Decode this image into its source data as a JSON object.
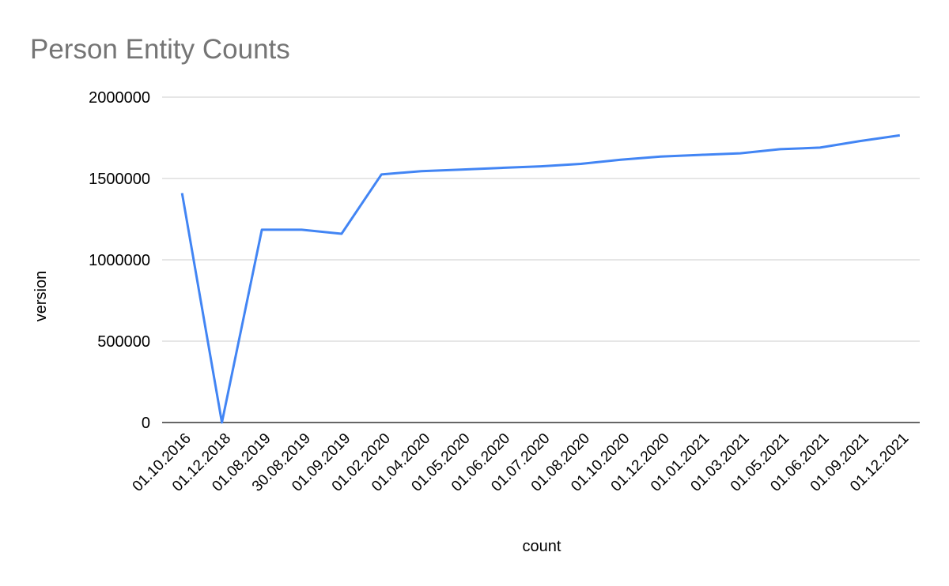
{
  "chart_data": {
    "type": "line",
    "title": "Person Entity Counts",
    "x_label": "count",
    "y_label": "version",
    "categories": [
      "01.10.2016",
      "01.12.2018",
      "01.08.2019",
      "30.08.2019",
      "01.09.2019",
      "01.02.2020",
      "01.04.2020",
      "01.05.2020",
      "01.06.2020",
      "01.07.2020",
      "01.08.2020",
      "01.10.2020",
      "01.12.2020",
      "01.01.2021",
      "01.03.2021",
      "01.05.2021",
      "01.06.2021",
      "01.09.2021",
      "01.12.2021"
    ],
    "values": [
      1410000,
      0,
      1185000,
      1185000,
      1160000,
      1525000,
      1545000,
      1555000,
      1565000,
      1575000,
      1590000,
      1615000,
      1635000,
      1645000,
      1655000,
      1680000,
      1690000,
      1730000,
      1765000
    ],
    "color": "#4285f4",
    "ylim": [
      0,
      2000000
    ],
    "yticks": [
      0,
      500000,
      1000000,
      1500000,
      2000000
    ],
    "grid": true
  }
}
